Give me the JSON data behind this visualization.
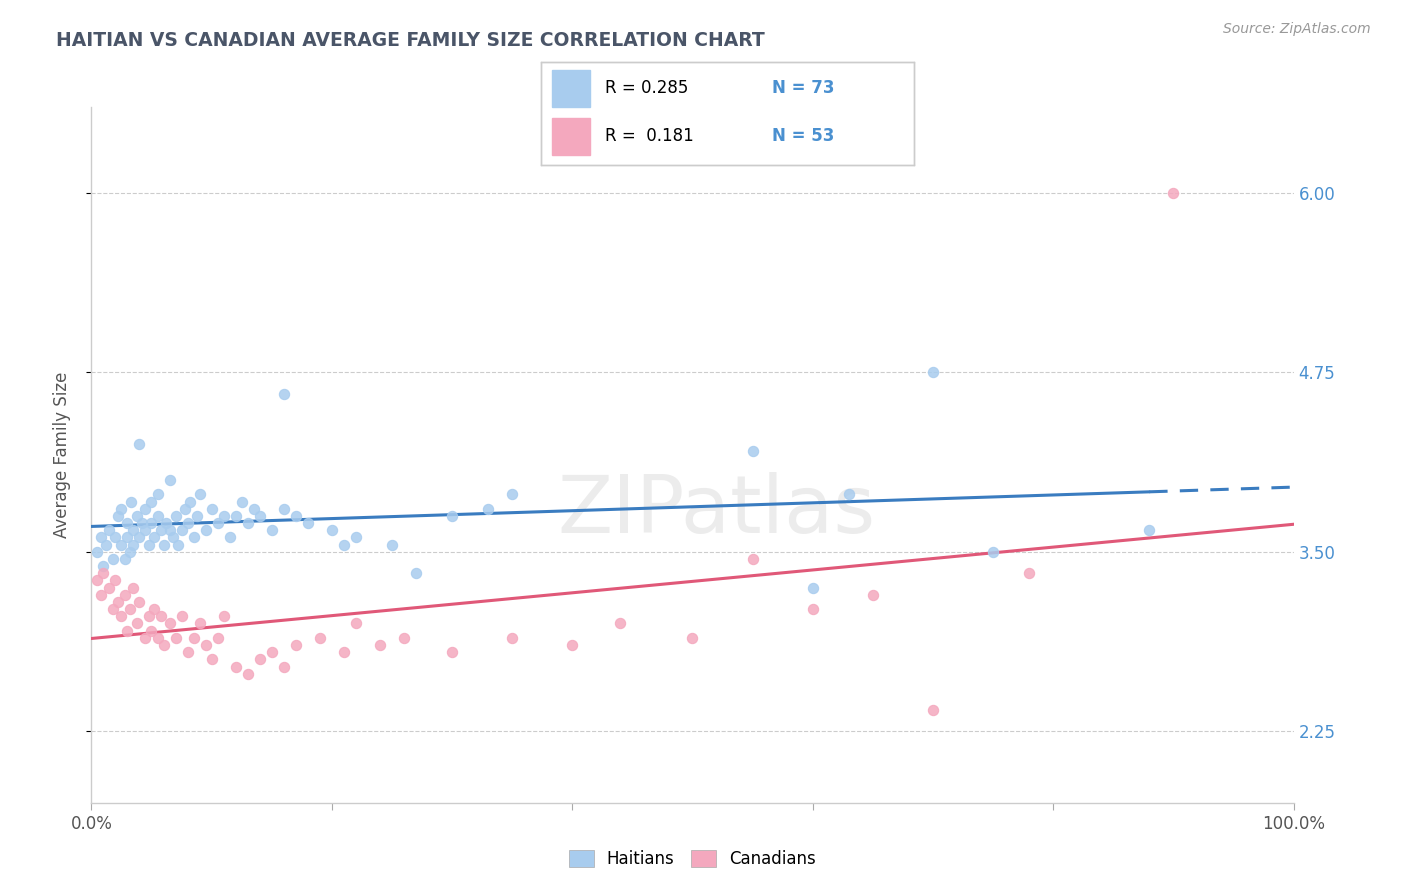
{
  "title": "HAITIAN VS CANADIAN AVERAGE FAMILY SIZE CORRELATION CHART",
  "source": "Source: ZipAtlas.com",
  "ylabel": "Average Family Size",
  "xlim": [
    0.0,
    1.0
  ],
  "ylim": [
    1.75,
    6.6
  ],
  "yticks": [
    2.25,
    3.5,
    4.75,
    6.0
  ],
  "yticklabels": [
    "2.25",
    "3.50",
    "4.75",
    "6.00"
  ],
  "xticks": [
    0.0,
    0.2,
    0.4,
    0.6,
    0.8,
    1.0
  ],
  "xticklabels": [
    "0.0%",
    "",
    "",
    "",
    "",
    "100.0%"
  ],
  "r_haitian": 0.285,
  "n_haitian": 73,
  "r_canadian": 0.181,
  "n_canadian": 53,
  "haitian_color": "#A8CCEE",
  "canadian_color": "#F4A8BE",
  "haitian_line_color": "#3A7CC0",
  "canadian_line_color": "#E05878",
  "grid_color": "#CCCCCC",
  "title_color": "#4A5568",
  "right_axis_color": "#4A90D0",
  "haitian_x": [
    0.005,
    0.008,
    0.01,
    0.012,
    0.015,
    0.018,
    0.02,
    0.022,
    0.025,
    0.025,
    0.028,
    0.03,
    0.03,
    0.032,
    0.033,
    0.035,
    0.035,
    0.038,
    0.04,
    0.04,
    0.042,
    0.045,
    0.045,
    0.048,
    0.05,
    0.05,
    0.052,
    0.055,
    0.055,
    0.058,
    0.06,
    0.062,
    0.065,
    0.065,
    0.068,
    0.07,
    0.072,
    0.075,
    0.078,
    0.08,
    0.082,
    0.085,
    0.088,
    0.09,
    0.095,
    0.1,
    0.105,
    0.11,
    0.115,
    0.12,
    0.125,
    0.13,
    0.135,
    0.14,
    0.15,
    0.16,
    0.17,
    0.18,
    0.2,
    0.21,
    0.22,
    0.25,
    0.27,
    0.16,
    0.3,
    0.33,
    0.35,
    0.55,
    0.6,
    0.63,
    0.7,
    0.75,
    0.88
  ],
  "haitian_y": [
    3.5,
    3.6,
    3.4,
    3.55,
    3.65,
    3.45,
    3.6,
    3.75,
    3.55,
    3.8,
    3.45,
    3.6,
    3.7,
    3.5,
    3.85,
    3.55,
    3.65,
    3.75,
    3.6,
    4.25,
    3.7,
    3.65,
    3.8,
    3.55,
    3.7,
    3.85,
    3.6,
    3.75,
    3.9,
    3.65,
    3.55,
    3.7,
    3.65,
    4.0,
    3.6,
    3.75,
    3.55,
    3.65,
    3.8,
    3.7,
    3.85,
    3.6,
    3.75,
    3.9,
    3.65,
    3.8,
    3.7,
    3.75,
    3.6,
    3.75,
    3.85,
    3.7,
    3.8,
    3.75,
    3.65,
    3.8,
    3.75,
    3.7,
    3.65,
    3.55,
    3.6,
    3.55,
    3.35,
    4.6,
    3.75,
    3.8,
    3.9,
    4.2,
    3.25,
    3.9,
    4.75,
    3.5,
    3.65
  ],
  "canadian_x": [
    0.005,
    0.008,
    0.01,
    0.015,
    0.018,
    0.02,
    0.022,
    0.025,
    0.028,
    0.03,
    0.032,
    0.035,
    0.038,
    0.04,
    0.045,
    0.048,
    0.05,
    0.052,
    0.055,
    0.058,
    0.06,
    0.065,
    0.07,
    0.075,
    0.08,
    0.085,
    0.09,
    0.095,
    0.1,
    0.105,
    0.11,
    0.12,
    0.13,
    0.14,
    0.15,
    0.16,
    0.17,
    0.19,
    0.21,
    0.22,
    0.24,
    0.26,
    0.3,
    0.35,
    0.4,
    0.44,
    0.5,
    0.55,
    0.6,
    0.65,
    0.7,
    0.78,
    0.9
  ],
  "canadian_y": [
    3.3,
    3.2,
    3.35,
    3.25,
    3.1,
    3.3,
    3.15,
    3.05,
    3.2,
    2.95,
    3.1,
    3.25,
    3.0,
    3.15,
    2.9,
    3.05,
    2.95,
    3.1,
    2.9,
    3.05,
    2.85,
    3.0,
    2.9,
    3.05,
    2.8,
    2.9,
    3.0,
    2.85,
    2.75,
    2.9,
    3.05,
    2.7,
    2.65,
    2.75,
    2.8,
    2.7,
    2.85,
    2.9,
    2.8,
    3.0,
    2.85,
    2.9,
    2.8,
    2.9,
    2.85,
    3.0,
    2.9,
    3.45,
    3.1,
    3.2,
    2.4,
    3.35,
    6.0
  ]
}
